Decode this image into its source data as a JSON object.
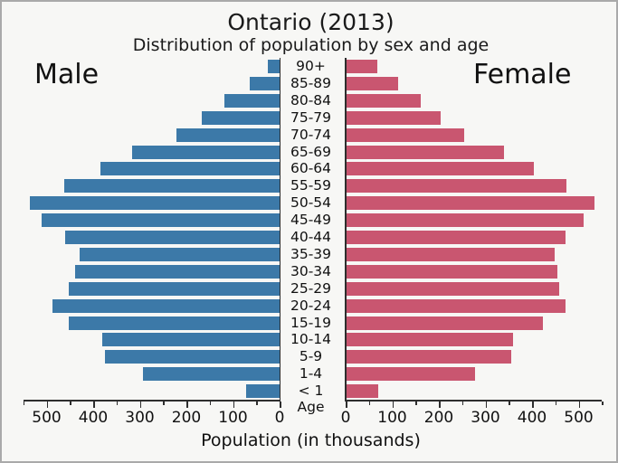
{
  "header": {
    "title": "Ontario (2013)",
    "subtitle": "Distribution of population by sex and age"
  },
  "labels": {
    "male": "Male",
    "female": "Female",
    "age_axis": "Age",
    "xlabel": "Population (in thousands)"
  },
  "colors": {
    "male_bar": "#3c79a8",
    "female_bar": "#c95670",
    "axis": "#2e2e2e",
    "background": "#f7f7f5",
    "frame_border": "#aaaaaa"
  },
  "chart_data": {
    "type": "bar",
    "subtype": "population-pyramid",
    "title": "Ontario (2013)",
    "subtitle": "Distribution of population by sex and age",
    "xlabel": "Population (in thousands)",
    "age_axis_label": "Age",
    "unit": "thousands",
    "xlim": [
      0,
      550
    ],
    "major_tick_step": 100,
    "minor_tick_step": 50,
    "x_ticks_left": [
      500,
      400,
      300,
      200,
      100,
      0
    ],
    "x_ticks_right": [
      0,
      100,
      200,
      300,
      400,
      500
    ],
    "categories_top_to_bottom": [
      "90+",
      "85-89",
      "80-84",
      "75-79",
      "70-74",
      "65-69",
      "60-64",
      "55-59",
      "50-54",
      "45-49",
      "40-44",
      "35-39",
      "30-34",
      "25-29",
      "20-24",
      "15-19",
      "10-14",
      "5-9",
      "1-4",
      "< 1"
    ],
    "series": [
      {
        "name": "Male",
        "side": "left",
        "values": [
          26,
          64,
          119,
          167,
          222,
          316,
          384,
          463,
          536,
          511,
          461,
          430,
          439,
          452,
          487,
          452,
          380,
          375,
          294,
          72
        ]
      },
      {
        "name": "Female",
        "side": "right",
        "values": [
          67,
          113,
          162,
          203,
          255,
          340,
          404,
          474,
          534,
          510,
          471,
          448,
          455,
          459,
          471,
          423,
          359,
          355,
          277,
          69
        ]
      }
    ]
  }
}
